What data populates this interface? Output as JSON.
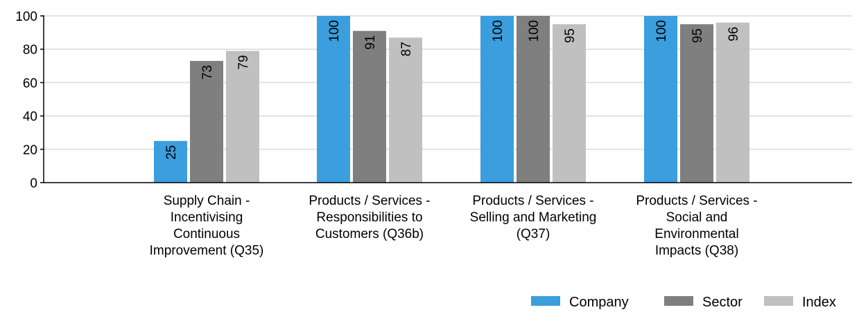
{
  "chart_data": {
    "type": "bar",
    "title": "",
    "xlabel": "",
    "ylabel": "",
    "ylim": [
      0,
      100
    ],
    "yticks": [
      0,
      20,
      40,
      60,
      80,
      100
    ],
    "grid": true,
    "legend_position": "bottom-right",
    "categories": [
      "Supply Chain - Incentivising Continuous Improvement (Q35)",
      "Products / Services - Responsibilities to Customers (Q36b)",
      "Products / Services - Selling and Marketing (Q37)",
      "Products / Services - Social and Environmental Impacts (Q38)"
    ],
    "category_lines": [
      [
        "Supply Chain -",
        "Incentivising",
        "Continuous",
        "Improvement (Q35)"
      ],
      [
        "Products / Services -",
        "Responsibilities to",
        "Customers (Q36b)"
      ],
      [
        "Products / Services -",
        "Selling and Marketing",
        "(Q37)"
      ],
      [
        "Products / Services -",
        "Social and",
        "Environmental",
        "Impacts (Q38)"
      ]
    ],
    "series": [
      {
        "name": "Company",
        "color": "#3b9ede",
        "values": [
          25,
          100,
          100,
          100
        ]
      },
      {
        "name": "Sector",
        "color": "#7f7f7f",
        "values": [
          73,
          91,
          100,
          95
        ]
      },
      {
        "name": "Index",
        "color": "#c0c0c0",
        "values": [
          79,
          87,
          95,
          96
        ]
      }
    ]
  }
}
